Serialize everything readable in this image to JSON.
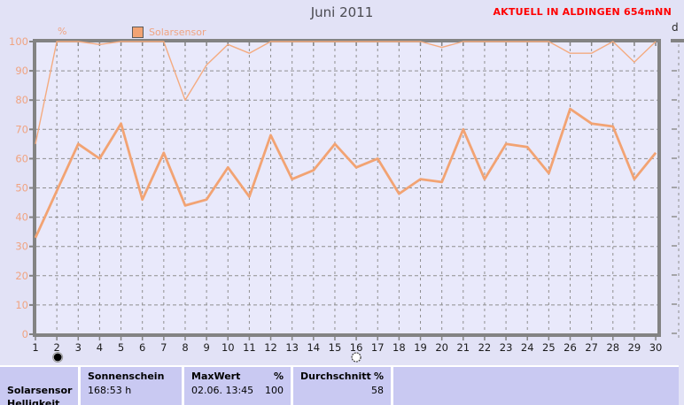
{
  "header": {
    "title": "Juni 2011",
    "status": "AKTUELL IN ALDINGEN 654mNN",
    "right_panel_label": "d"
  },
  "colors": {
    "line": "#f2a373",
    "line_thin": "#f4ab80",
    "axis_labels": "#f0a482",
    "status_red": "#ff0000",
    "axis_gray": "#838383",
    "grid_gray": "#8f8f8f",
    "day_label": "#1b1b1b",
    "plot_bg": "#e9e9fb"
  },
  "chart_data": {
    "type": "line",
    "title": "Juni 2011",
    "unit": "%",
    "legend": [
      {
        "label": "Solarsensor",
        "color": "#f2a373"
      }
    ],
    "x": [
      1,
      2,
      3,
      4,
      5,
      6,
      7,
      8,
      9,
      10,
      11,
      12,
      13,
      14,
      15,
      16,
      17,
      18,
      19,
      20,
      21,
      22,
      23,
      24,
      25,
      26,
      27,
      28,
      29,
      30
    ],
    "xlabel": "",
    "ylabel": "%",
    "ylim": [
      0,
      100
    ],
    "yticks": [
      0,
      10,
      20,
      30,
      40,
      50,
      60,
      70,
      80,
      90,
      100
    ],
    "grid": true,
    "legend_position": "top-left",
    "series": [
      {
        "name": "upper_line",
        "values": [
          65,
          100,
          100,
          99,
          100,
          100,
          100,
          80,
          92,
          99,
          96,
          100,
          100,
          100,
          100,
          100,
          100,
          100,
          100,
          98,
          100,
          100,
          100,
          100,
          100,
          96,
          96,
          100,
          93,
          100
        ]
      },
      {
        "name": "lower_line",
        "values": [
          33,
          49,
          65,
          60,
          72,
          46,
          62,
          44,
          46,
          57,
          47,
          68,
          53,
          56,
          65,
          57,
          60,
          48,
          53,
          52,
          70,
          53,
          65,
          64,
          55,
          77,
          72,
          71,
          53,
          62
        ]
      }
    ],
    "moon_markers": [
      {
        "day": 2,
        "symbol": "filled-circle"
      },
      {
        "day": 16,
        "symbol": "open-circle"
      }
    ]
  },
  "table": {
    "sensor_rows": [
      "Solarsensor",
      "Helligkeit"
    ],
    "sonnenschein": {
      "header": "Sonnenschein",
      "value": "168:53 h"
    },
    "maxwert": {
      "header": "MaxWert",
      "unit": "%",
      "date": "02.06.  13:45",
      "value": "100"
    },
    "durchschnitt": {
      "header": "Durchschnitt",
      "unit": "%",
      "value": "58"
    }
  }
}
